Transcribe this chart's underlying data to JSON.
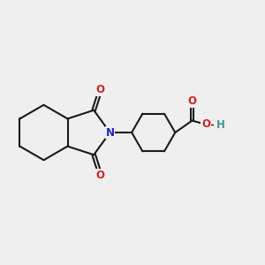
{
  "bg_color": "#efefef",
  "bond_color": "#1a1a1a",
  "N_color": "#2222cc",
  "O_color": "#cc2222",
  "OH_color": "#4a9090",
  "H_color": "#4a9090",
  "line_width": 1.5,
  "font_size_atom": 8.5,
  "xlim": [
    0,
    10
  ],
  "ylim": [
    0,
    10
  ]
}
